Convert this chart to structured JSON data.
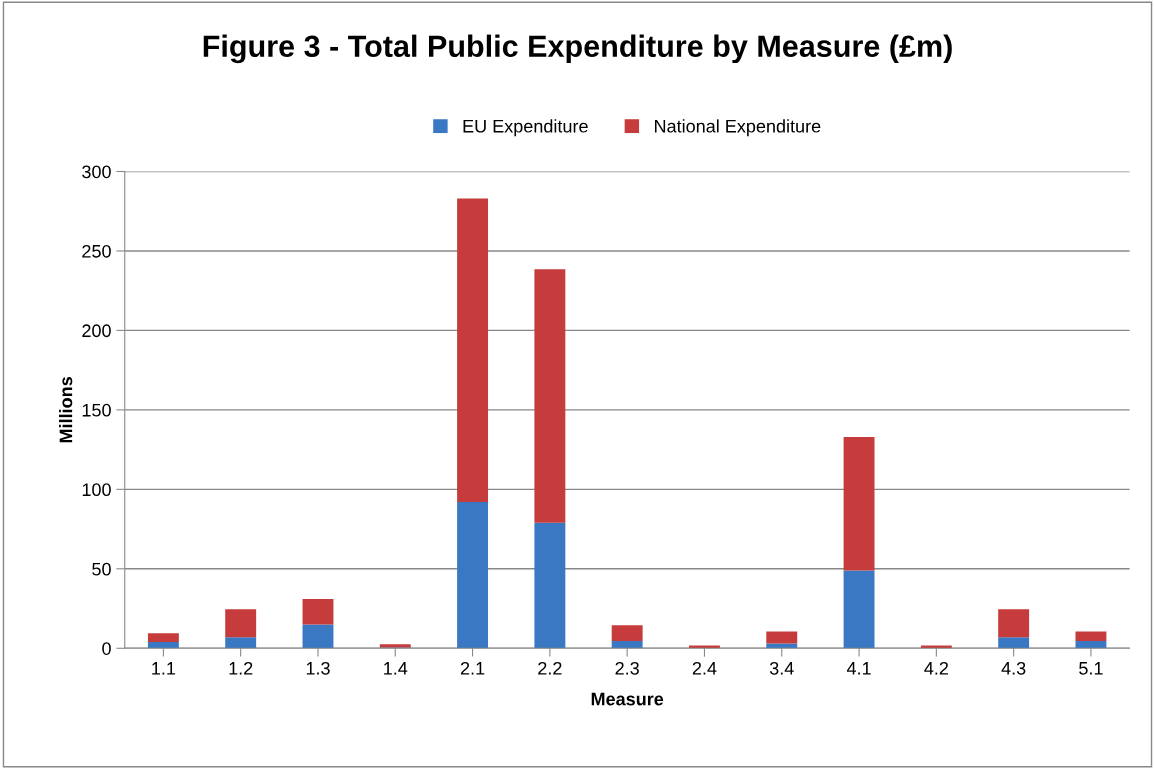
{
  "chart_data": {
    "type": "bar",
    "title": "Figure 3 - Total Public Expenditure by Measure (£m)",
    "xlabel": "Measure",
    "ylabel": "Millions",
    "categories": [
      "1.1",
      "1.2",
      "1.3",
      "1.4",
      "2.1",
      "2.2",
      "2.3",
      "2.4",
      "3.4",
      "4.1",
      "4.2",
      "4.3",
      "5.1"
    ],
    "stacked": true,
    "series": [
      {
        "name": "EU Expenditure",
        "color": "#3b78c4",
        "values": [
          4,
          7,
          15,
          0.5,
          92,
          79,
          4.5,
          null,
          3,
          49,
          null,
          7,
          4.5
        ]
      },
      {
        "name": "National Expenditure",
        "color": "#c63b3b",
        "values": [
          5.5,
          17.5,
          16,
          2,
          191,
          159.5,
          10,
          1.7,
          7.5,
          84,
          1.7,
          17.5,
          6
        ]
      }
    ],
    "ylim": [
      0,
      300
    ],
    "yticks": [
      0,
      50,
      100,
      150,
      200,
      250,
      300
    ],
    "grid": "y",
    "legend": "top"
  }
}
